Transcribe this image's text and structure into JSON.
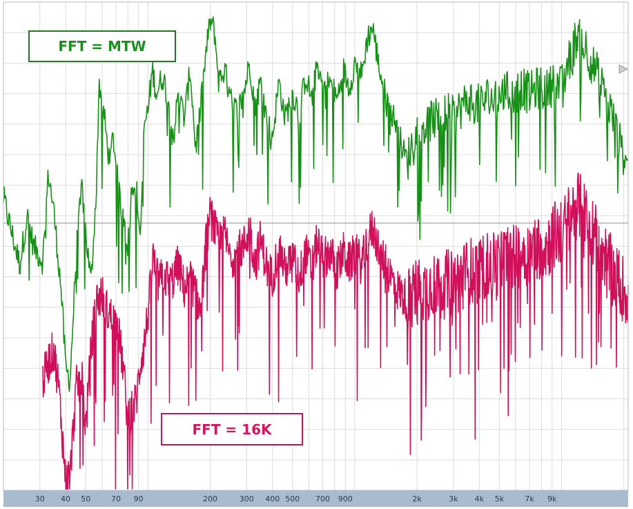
{
  "chart_data": {
    "type": "line",
    "x_scale": "log",
    "xlim": [
      20,
      21000
    ],
    "x_ticks": [
      30,
      40,
      50,
      70,
      90,
      200,
      300,
      400,
      500,
      700,
      900,
      2000,
      3000,
      4000,
      5000,
      7000,
      9000
    ],
    "x_tick_labels": [
      "30",
      "40",
      "50",
      "70",
      "90",
      "200",
      "300",
      "400",
      "500",
      "700",
      "900",
      "2k",
      "3k",
      "4k",
      "5k",
      "7k",
      "9k"
    ],
    "ylim": [
      0,
      16
    ],
    "grid": true,
    "annotations": [
      "FFT = MTW",
      "FFT = 16K"
    ],
    "colors": {
      "green": "#169016",
      "crimson": "#d0105a",
      "axis_bar": "#a9bccf",
      "grid": "#dcdcdc",
      "marker": "#9a9a9a"
    },
    "series": [
      {
        "color": "#169016",
        "roughness": 0.9,
        "points": [
          [
            20,
            9.6
          ],
          [
            22,
            8.4
          ],
          [
            24,
            7.4
          ],
          [
            26,
            9.0
          ],
          [
            28,
            8.0
          ],
          [
            31,
            7.5
          ],
          [
            33,
            10.4
          ],
          [
            35,
            9.2
          ],
          [
            38,
            6.6
          ],
          [
            40,
            4.0
          ],
          [
            42,
            3.6
          ],
          [
            45,
            7.8
          ],
          [
            48,
            10.0
          ],
          [
            50,
            8.4
          ],
          [
            53,
            6.8
          ],
          [
            56,
            9.6
          ],
          [
            58,
            13.4
          ],
          [
            61,
            12.4
          ],
          [
            65,
            10.8
          ],
          [
            68,
            11.6
          ],
          [
            72,
            9.8
          ],
          [
            76,
            9.0
          ],
          [
            80,
            8.0
          ],
          [
            84,
            10.2
          ],
          [
            88,
            9.8
          ],
          [
            92,
            8.4
          ],
          [
            96,
            12.0
          ],
          [
            100,
            12.4
          ],
          [
            105,
            13.8
          ],
          [
            110,
            13.0
          ],
          [
            118,
            13.6
          ],
          [
            125,
            12.8
          ],
          [
            133,
            11.6
          ],
          [
            140,
            13.0
          ],
          [
            150,
            12.2
          ],
          [
            160,
            13.8
          ],
          [
            170,
            11.2
          ],
          [
            180,
            12.6
          ],
          [
            190,
            14.2
          ],
          [
            200,
            15.4
          ],
          [
            210,
            15.0
          ],
          [
            220,
            13.4
          ],
          [
            235,
            13.8
          ],
          [
            250,
            12.8
          ],
          [
            270,
            12.4
          ],
          [
            290,
            13.0
          ],
          [
            310,
            14.0
          ],
          [
            330,
            12.6
          ],
          [
            350,
            13.4
          ],
          [
            380,
            12.0
          ],
          [
            400,
            11.6
          ],
          [
            430,
            13.4
          ],
          [
            460,
            12.2
          ],
          [
            500,
            13.0
          ],
          [
            540,
            12.4
          ],
          [
            580,
            13.6
          ],
          [
            620,
            12.8
          ],
          [
            660,
            14.0
          ],
          [
            700,
            13.2
          ],
          [
            760,
            13.4
          ],
          [
            820,
            12.8
          ],
          [
            880,
            13.8
          ],
          [
            940,
            13.2
          ],
          [
            1000,
            14.0
          ],
          [
            1080,
            13.6
          ],
          [
            1150,
            14.8
          ],
          [
            1220,
            15.2
          ],
          [
            1300,
            14.0
          ],
          [
            1400,
            13.0
          ],
          [
            1500,
            12.4
          ],
          [
            1600,
            12.0
          ],
          [
            1700,
            11.2
          ],
          [
            1800,
            10.8
          ],
          [
            1900,
            11.4
          ],
          [
            2000,
            11.8
          ],
          [
            2200,
            12.0
          ],
          [
            2400,
            12.2
          ],
          [
            2600,
            12.0
          ],
          [
            2800,
            12.4
          ],
          [
            3000,
            12.2
          ],
          [
            3300,
            12.6
          ],
          [
            3600,
            12.8
          ],
          [
            4000,
            12.6
          ],
          [
            4400,
            12.9
          ],
          [
            4800,
            12.7
          ],
          [
            5300,
            13.1
          ],
          [
            5800,
            12.9
          ],
          [
            6400,
            13.2
          ],
          [
            7000,
            13.0
          ],
          [
            7700,
            13.2
          ],
          [
            8500,
            13.1
          ],
          [
            9300,
            13.4
          ],
          [
            10000,
            13.2
          ],
          [
            11000,
            14.2
          ],
          [
            12000,
            15.0
          ],
          [
            13000,
            14.6
          ],
          [
            14000,
            14.0
          ],
          [
            15000,
            13.6
          ],
          [
            16000,
            13.0
          ],
          [
            17000,
            12.6
          ],
          [
            18000,
            12.0
          ],
          [
            19000,
            11.4
          ],
          [
            20000,
            11.0
          ],
          [
            21000,
            10.8
          ]
        ]
      },
      {
        "color": "#d0105a",
        "roughness": 1.4,
        "points": [
          [
            31,
            3.6
          ],
          [
            33,
            4.2
          ],
          [
            35,
            4.6
          ],
          [
            37,
            3.4
          ],
          [
            40,
            0.3
          ],
          [
            42,
            0.5
          ],
          [
            45,
            3.4
          ],
          [
            48,
            3.6
          ],
          [
            50,
            2.0
          ],
          [
            53,
            4.6
          ],
          [
            56,
            6.2
          ],
          [
            60,
            6.4
          ],
          [
            64,
            5.8
          ],
          [
            68,
            5.6
          ],
          [
            72,
            5.2
          ],
          [
            76,
            4.0
          ],
          [
            80,
            2.2
          ],
          [
            84,
            2.6
          ],
          [
            88,
            3.0
          ],
          [
            92,
            4.2
          ],
          [
            96,
            4.8
          ],
          [
            100,
            5.8
          ],
          [
            106,
            7.6
          ],
          [
            112,
            6.8
          ],
          [
            120,
            7.0
          ],
          [
            130,
            6.8
          ],
          [
            140,
            7.4
          ],
          [
            150,
            6.6
          ],
          [
            160,
            7.0
          ],
          [
            170,
            6.4
          ],
          [
            180,
            5.8
          ],
          [
            190,
            8.0
          ],
          [
            200,
            9.0
          ],
          [
            210,
            8.6
          ],
          [
            220,
            8.0
          ],
          [
            235,
            8.4
          ],
          [
            250,
            7.6
          ],
          [
            270,
            7.8
          ],
          [
            290,
            8.0
          ],
          [
            310,
            8.6
          ],
          [
            330,
            7.4
          ],
          [
            350,
            8.2
          ],
          [
            380,
            7.2
          ],
          [
            400,
            7.0
          ],
          [
            430,
            8.0
          ],
          [
            460,
            7.2
          ],
          [
            500,
            7.6
          ],
          [
            540,
            7.0
          ],
          [
            580,
            7.8
          ],
          [
            620,
            7.2
          ],
          [
            660,
            8.2
          ],
          [
            700,
            7.6
          ],
          [
            760,
            7.8
          ],
          [
            820,
            7.2
          ],
          [
            880,
            7.8
          ],
          [
            940,
            7.4
          ],
          [
            1000,
            7.8
          ],
          [
            1080,
            7.4
          ],
          [
            1150,
            8.2
          ],
          [
            1220,
            8.6
          ],
          [
            1300,
            8.0
          ],
          [
            1400,
            7.4
          ],
          [
            1500,
            7.0
          ],
          [
            1600,
            6.6
          ],
          [
            1700,
            6.4
          ],
          [
            1800,
            6.2
          ],
          [
            1900,
            6.4
          ],
          [
            2000,
            6.6
          ],
          [
            2200,
            6.6
          ],
          [
            2400,
            6.8
          ],
          [
            2600,
            6.6
          ],
          [
            2800,
            6.8
          ],
          [
            3000,
            6.8
          ],
          [
            3300,
            7.0
          ],
          [
            3600,
            7.2
          ],
          [
            4000,
            7.2
          ],
          [
            4400,
            7.4
          ],
          [
            4800,
            7.3
          ],
          [
            5300,
            7.6
          ],
          [
            5800,
            7.6
          ],
          [
            6400,
            7.8
          ],
          [
            7000,
            7.8
          ],
          [
            7700,
            8.0
          ],
          [
            8500,
            8.0
          ],
          [
            9300,
            8.4
          ],
          [
            10000,
            8.4
          ],
          [
            11000,
            9.0
          ],
          [
            12000,
            9.4
          ],
          [
            13000,
            9.0
          ],
          [
            14000,
            8.6
          ],
          [
            15000,
            8.2
          ],
          [
            16000,
            7.8
          ],
          [
            17000,
            7.4
          ],
          [
            18000,
            7.0
          ],
          [
            19000,
            6.8
          ],
          [
            20000,
            6.6
          ],
          [
            21000,
            6.4
          ]
        ]
      }
    ]
  },
  "labels": {
    "mtw": "FFT = MTW",
    "k16": "FFT = 16K"
  }
}
